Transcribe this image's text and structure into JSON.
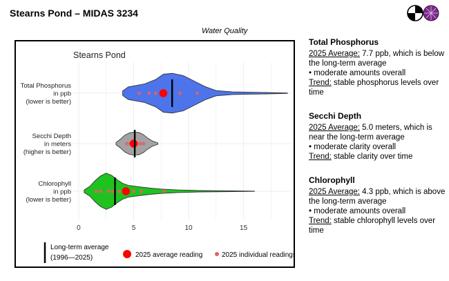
{
  "header": {
    "title": "Stearns Pond – MIDAS 3234",
    "section_label": "Water Quality"
  },
  "logo": {
    "icon": "lake-logo-icon"
  },
  "chart_data": {
    "type": "violin",
    "orientation": "horizontal",
    "title": "Stearns Pond",
    "xlim": [
      -0.5,
      19.3
    ],
    "xticks": [
      0,
      5,
      10,
      15
    ],
    "grid": true,
    "legend_position": "bottom",
    "series": [
      {
        "label_lines": [
          "Total Phosphorus",
          "in ppb",
          "(lower is better)"
        ],
        "color": "#4d74ea",
        "long_term_average": 8.5,
        "average_2025": 7.7,
        "individual_readings": [
          5.5,
          6.4,
          7.0,
          7.9,
          9.2,
          10.8
        ],
        "density": [
          [
            4.0,
            0.1
          ],
          [
            4.5,
            0.28
          ],
          [
            5.0,
            0.33
          ],
          [
            6.0,
            0.42
          ],
          [
            7.0,
            0.62
          ],
          [
            7.7,
            0.86
          ],
          [
            8.5,
            0.9
          ],
          [
            9.5,
            0.8
          ],
          [
            10.5,
            0.55
          ],
          [
            11.5,
            0.3
          ],
          [
            12.5,
            0.12
          ],
          [
            14.0,
            0.06
          ],
          [
            17.0,
            0.03
          ],
          [
            19.0,
            0.01
          ]
        ]
      },
      {
        "label_lines": [
          "Secchi Depth",
          "in meters",
          "(higher is better)"
        ],
        "color": "#a3a3a3",
        "long_term_average": 5.1,
        "average_2025": 5.0,
        "individual_readings": [
          4.4,
          4.7,
          5.3,
          5.6,
          5.9
        ],
        "density": [
          [
            3.4,
            0.05
          ],
          [
            3.8,
            0.2
          ],
          [
            4.2,
            0.38
          ],
          [
            4.6,
            0.48
          ],
          [
            5.0,
            0.52
          ],
          [
            5.5,
            0.5
          ],
          [
            5.9,
            0.4
          ],
          [
            6.3,
            0.24
          ],
          [
            6.7,
            0.12
          ],
          [
            7.2,
            0.03
          ]
        ]
      },
      {
        "label_lines": [
          "Chlorophyll",
          "in ppb",
          "(lower is better)"
        ],
        "color": "#1fc21f",
        "long_term_average": 3.3,
        "average_2025": 4.3,
        "individual_readings": [
          1.6,
          2.0,
          2.7,
          3.1,
          3.7,
          4.2,
          5.0,
          5.7,
          7.8
        ],
        "density": [
          [
            0.5,
            0.06
          ],
          [
            1.0,
            0.22
          ],
          [
            1.5,
            0.48
          ],
          [
            2.0,
            0.7
          ],
          [
            2.5,
            0.82
          ],
          [
            3.0,
            0.72
          ],
          [
            3.5,
            0.52
          ],
          [
            4.0,
            0.36
          ],
          [
            4.5,
            0.27
          ],
          [
            5.5,
            0.2
          ],
          [
            6.5,
            0.14
          ],
          [
            7.5,
            0.1
          ],
          [
            9.0,
            0.06
          ],
          [
            11.0,
            0.03
          ],
          [
            14.0,
            0.015
          ],
          [
            16.0,
            0.005
          ]
        ]
      }
    ],
    "legend": {
      "long_term_lines": [
        "Long-term average",
        "(1996—2025)"
      ],
      "average_label": "2025 average reading",
      "individual_label": "2025 individual readings",
      "marker_color": "#ff0000",
      "individual_color": "#e0626a"
    }
  },
  "summaries": [
    {
      "heading": "Total Phosphorus",
      "avg_label": "2025 Average:",
      "avg_text": " 7.7 ppb, which is below the long-term average",
      "bullet": "• moderate amounts overall",
      "trend_label": "Trend:",
      "trend_text": " stable phosphorus levels over time"
    },
    {
      "heading": "Secchi Depth",
      "avg_label": "2025 Average:",
      "avg_text": " 5.0 meters, which is near the long-term average",
      "bullet": "• moderate clarity overall",
      "trend_label": "Trend:",
      "trend_text": " stable clarity over time"
    },
    {
      "heading": "Chlorophyll",
      "avg_label": "2025 Average:",
      "avg_text": " 4.3 ppb, which is above the long-term average",
      "bullet": "• moderate amounts overall",
      "trend_label": "Trend:",
      "trend_text": " stable chlorophyll levels over time"
    }
  ]
}
